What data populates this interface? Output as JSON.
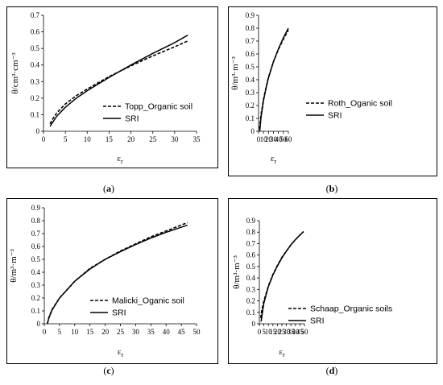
{
  "figure": {
    "panels": [
      {
        "caption_open": "(",
        "caption_letter": "a",
        "caption_close": ")"
      },
      {
        "caption_open": "(",
        "caption_letter": "b",
        "caption_close": ")"
      },
      {
        "caption_open": "(",
        "caption_letter": "c",
        "caption_close": ")"
      },
      {
        "caption_open": "(",
        "caption_letter": "d",
        "caption_close": ")"
      }
    ]
  },
  "chart_data": [
    {
      "type": "line",
      "ylabel": "θ/cm³·cm⁻³",
      "xlabel": "εr",
      "xlim": [
        0,
        35
      ],
      "ylim": [
        0,
        0.7
      ],
      "xticks": [
        0,
        5,
        10,
        15,
        20,
        25,
        30,
        35
      ],
      "yticks": [
        0,
        0.1,
        0.2,
        0.3,
        0.4,
        0.5,
        0.6,
        0.7
      ],
      "ytick_labels": [
        "0",
        "0.1",
        "0.2",
        "0.3",
        "0.4",
        "0.5",
        "0.6",
        "0.7"
      ],
      "grid": false,
      "legend_position": "lower-right",
      "series": [
        {
          "name": "Topp_Organic soil",
          "style": "dashed",
          "x": [
            1.5,
            2,
            3,
            5,
            7.5,
            10,
            15,
            20,
            25,
            30,
            33
          ],
          "y": [
            0.045,
            0.07,
            0.11,
            0.165,
            0.215,
            0.255,
            0.33,
            0.395,
            0.455,
            0.51,
            0.545
          ]
        },
        {
          "name": "SRI",
          "style": "solid",
          "x": [
            1.5,
            2,
            3,
            5,
            7.5,
            10,
            15,
            20,
            25,
            30,
            33
          ],
          "y": [
            0.03,
            0.05,
            0.09,
            0.145,
            0.2,
            0.245,
            0.325,
            0.4,
            0.47,
            0.535,
            0.58
          ]
        }
      ]
    },
    {
      "type": "line",
      "ylabel": "θ/m³·m⁻³",
      "xlabel": "εr",
      "xlim": [
        0,
        60
      ],
      "ylim": [
        0,
        0.9
      ],
      "xticks": [
        0,
        10,
        20,
        30,
        40,
        50,
        60
      ],
      "yticks": [
        0,
        0.1,
        0.2,
        0.3,
        0.4,
        0.5,
        0.6,
        0.7,
        0.8,
        0.9
      ],
      "ytick_labels": [
        "0",
        "0.1",
        "0.2",
        "0.3",
        "0.4",
        "0.5",
        "0.6",
        "0.7",
        "0.8",
        "0.9"
      ],
      "grid": false,
      "legend_position": "lower-right",
      "series": [
        {
          "name": "Roth_Oganic soil",
          "style": "dashed",
          "x": [
            2,
            3,
            5,
            10,
            15,
            20,
            30,
            40,
            50,
            60
          ],
          "y": [
            0.02,
            0.06,
            0.13,
            0.25,
            0.34,
            0.42,
            0.54,
            0.635,
            0.715,
            0.785
          ]
        },
        {
          "name": "SRI",
          "style": "solid",
          "x": [
            2.5,
            3.5,
            5,
            10,
            15,
            20,
            30,
            40,
            50,
            60
          ],
          "y": [
            0.0,
            0.05,
            0.11,
            0.24,
            0.335,
            0.415,
            0.54,
            0.64,
            0.725,
            0.8
          ]
        }
      ]
    },
    {
      "type": "line",
      "ylabel": "θ/m³·m⁻³",
      "xlabel": "εr",
      "xlim": [
        0,
        50
      ],
      "ylim": [
        0,
        0.9
      ],
      "xticks": [
        0,
        5,
        10,
        15,
        20,
        25,
        30,
        35,
        40,
        45,
        50
      ],
      "yticks": [
        0,
        0.1,
        0.2,
        0.3,
        0.4,
        0.5,
        0.6,
        0.7,
        0.8,
        0.9
      ],
      "ytick_labels": [
        "0",
        "0.1",
        "0.2",
        "0.3",
        "0.4",
        "0.5",
        "0.6",
        "0.7",
        "0.8",
        "0.9"
      ],
      "grid": false,
      "legend_position": "lower-center",
      "series": [
        {
          "name": "Malicki_Oganic soil",
          "style": "dashed",
          "x": [
            1,
            1.5,
            2.5,
            5,
            10,
            15,
            20,
            25,
            30,
            35,
            40,
            47
          ],
          "y": [
            0.0,
            0.05,
            0.11,
            0.2,
            0.33,
            0.43,
            0.5,
            0.565,
            0.62,
            0.675,
            0.72,
            0.785
          ]
        },
        {
          "name": "SRI",
          "style": "solid",
          "x": [
            1,
            1.5,
            2.5,
            5,
            10,
            15,
            20,
            25,
            30,
            35,
            40,
            47
          ],
          "y": [
            0.0,
            0.045,
            0.105,
            0.2,
            0.33,
            0.425,
            0.5,
            0.56,
            0.615,
            0.665,
            0.71,
            0.765
          ]
        }
      ]
    },
    {
      "type": "line",
      "ylabel": "θ/m³·m⁻³",
      "xlabel": "εr",
      "xlim": [
        0,
        50
      ],
      "ylim": [
        0,
        0.9
      ],
      "xticks": [
        0,
        5,
        10,
        15,
        20,
        25,
        30,
        35,
        40,
        45,
        50
      ],
      "yticks": [
        0,
        0.1,
        0.2,
        0.3,
        0.4,
        0.5,
        0.6,
        0.7,
        0.8,
        0.9
      ],
      "ytick_labels": [
        "0",
        "0.1",
        "0.2",
        "0.3",
        "0.4",
        "0.5",
        "0.6",
        "0.7",
        "0.8",
        "0.9"
      ],
      "grid": false,
      "legend_position": "lower-center",
      "series": [
        {
          "name": "Schaap_Organic soils",
          "style": "dashed",
          "x": [
            1.5,
            2.5,
            5,
            10,
            15,
            20,
            25,
            30,
            35,
            40,
            45,
            49
          ],
          "y": [
            0.05,
            0.11,
            0.2,
            0.33,
            0.43,
            0.51,
            0.58,
            0.635,
            0.69,
            0.735,
            0.775,
            0.805
          ]
        },
        {
          "name": "SRI",
          "style": "solid",
          "x": [
            2,
            3,
            5,
            10,
            15,
            20,
            25,
            30,
            35,
            40,
            45,
            49
          ],
          "y": [
            0.02,
            0.08,
            0.18,
            0.325,
            0.425,
            0.505,
            0.575,
            0.635,
            0.69,
            0.735,
            0.775,
            0.805
          ]
        }
      ]
    }
  ]
}
